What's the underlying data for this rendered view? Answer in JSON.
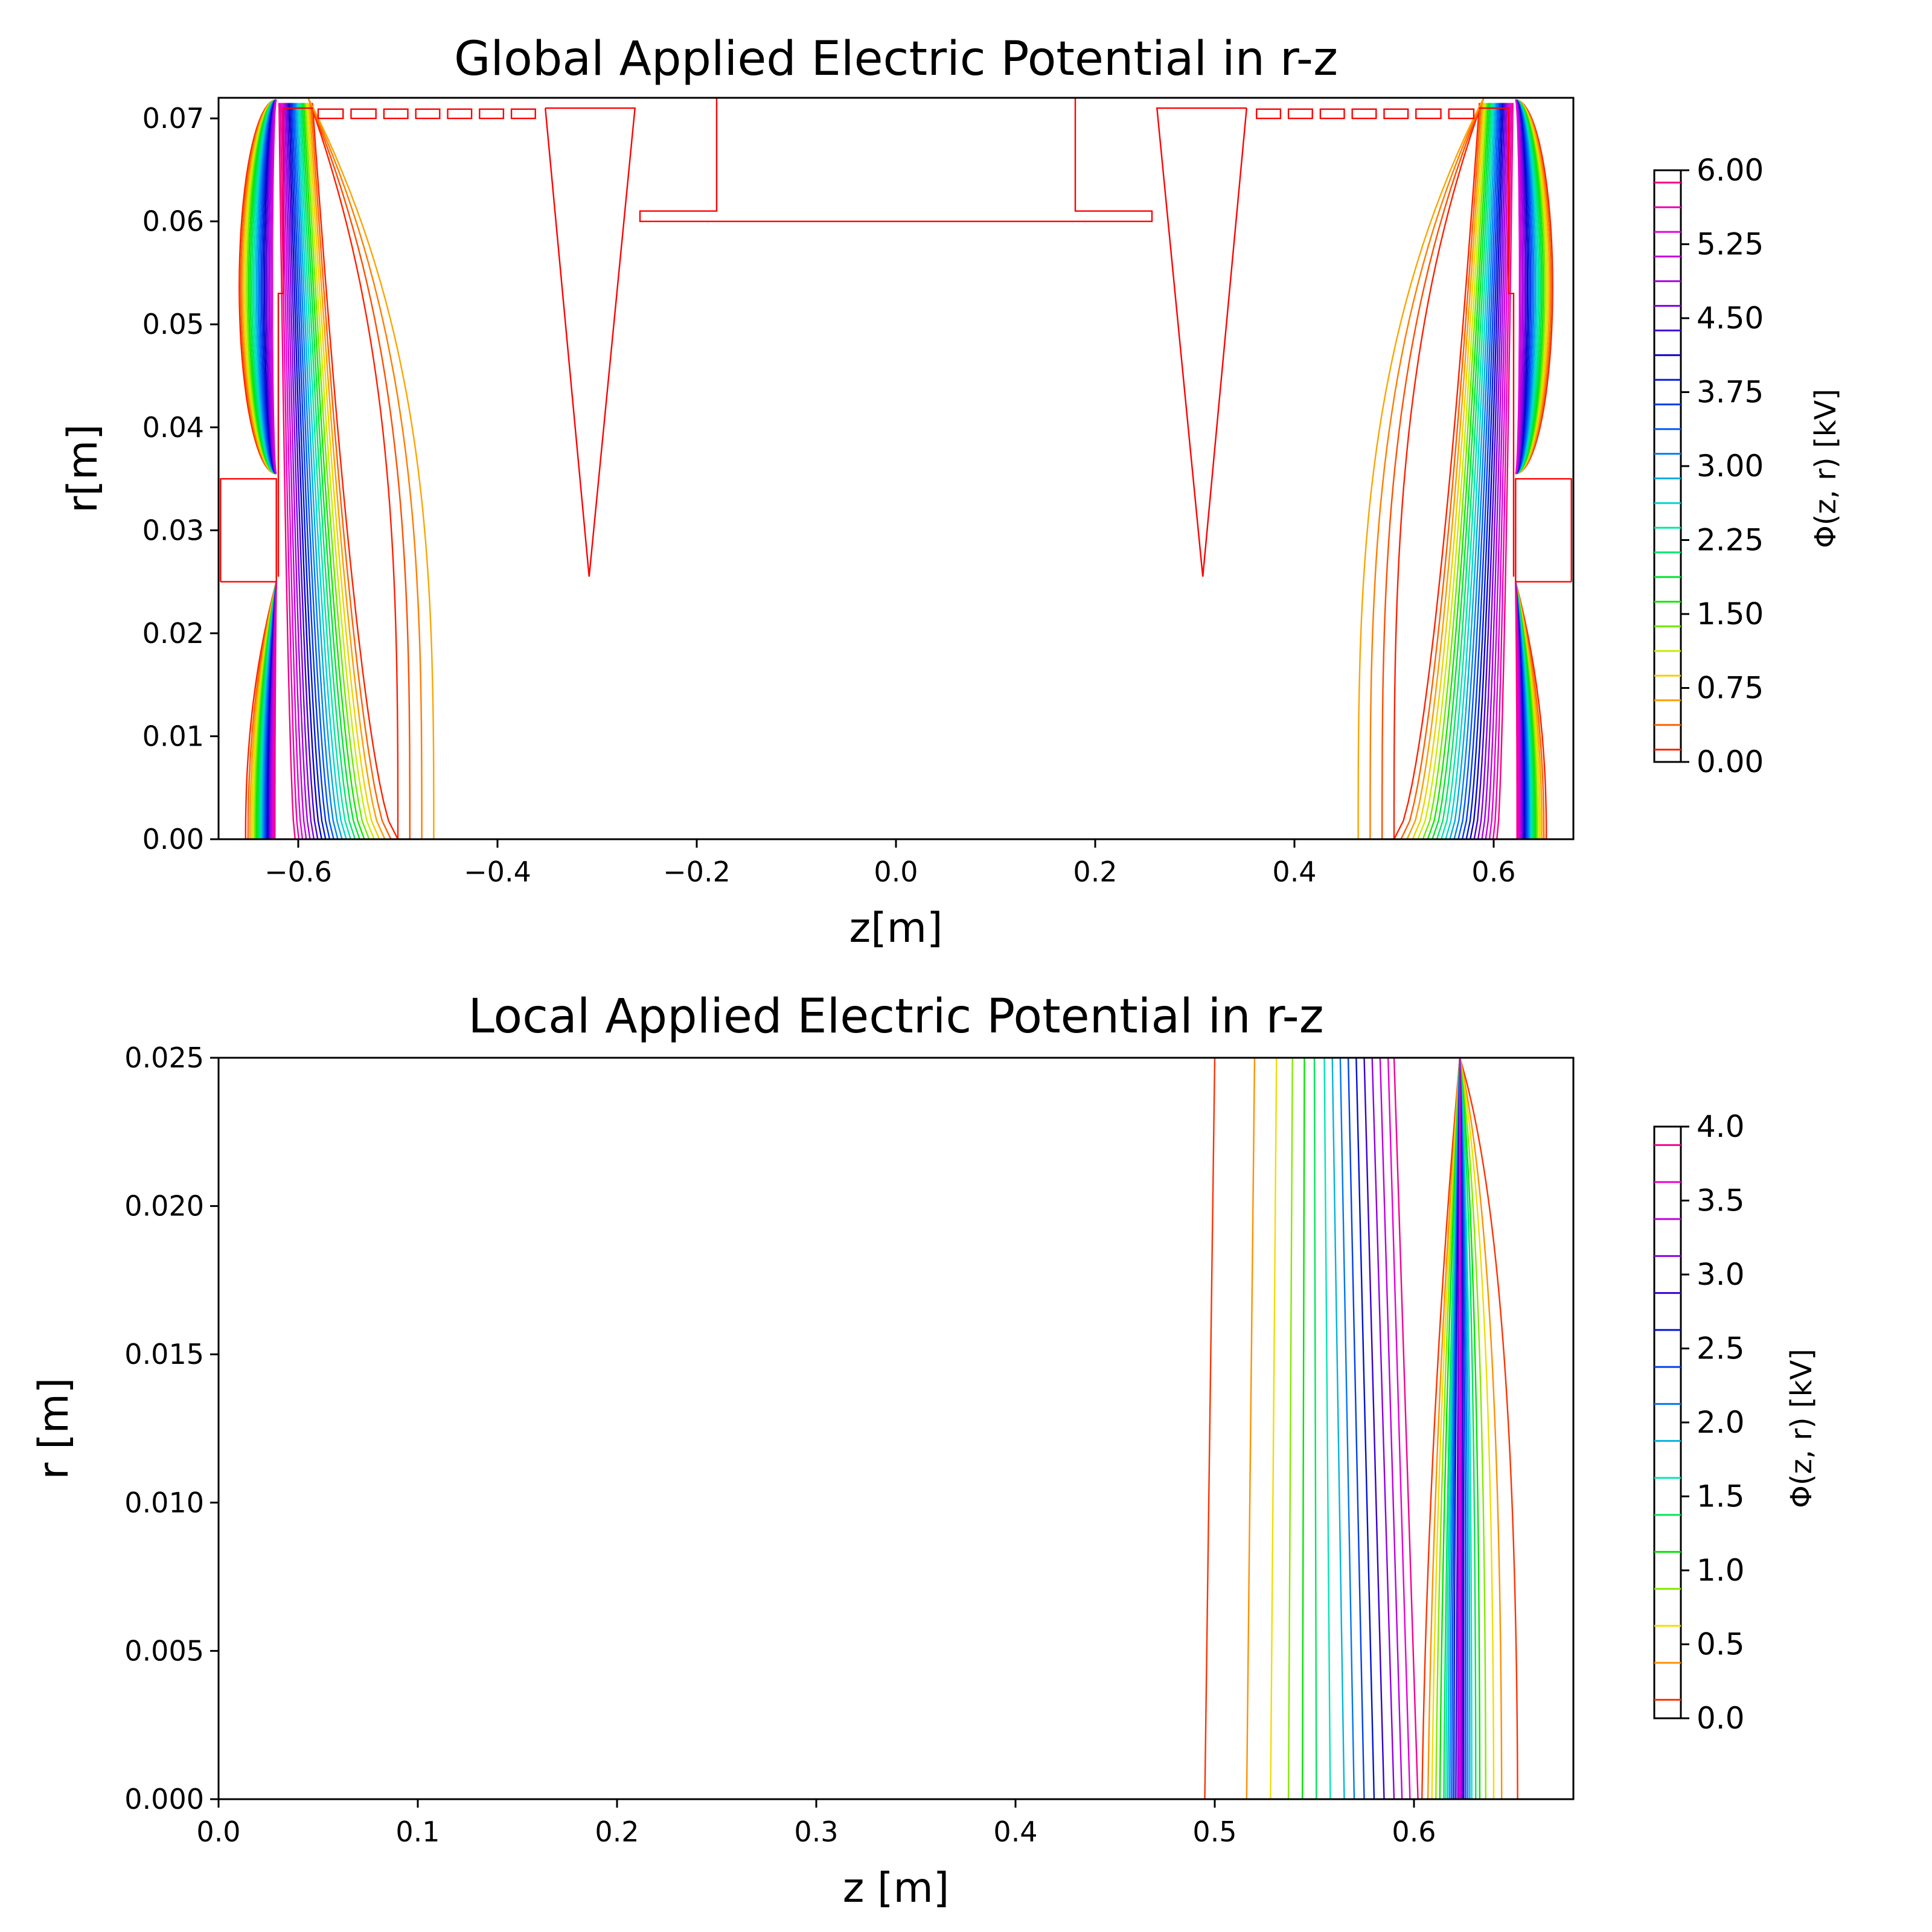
{
  "chart_data": [
    {
      "type": "contour",
      "title": "Global Applied Electric Potential in r-z",
      "xlabel": "z[m]",
      "ylabel": "r[m]",
      "xlim": [
        -0.68,
        0.68
      ],
      "ylim": [
        0.0,
        0.072
      ],
      "x_ticks": [
        "−0.6",
        "−0.4",
        "−0.2",
        "0.0",
        "0.2",
        "0.4",
        "0.6"
      ],
      "x_tick_values": [
        -0.6,
        -0.4,
        -0.2,
        0.0,
        0.2,
        0.4,
        0.6
      ],
      "y_ticks": [
        "0.00",
        "0.01",
        "0.02",
        "0.03",
        "0.04",
        "0.05",
        "0.06",
        "0.07"
      ],
      "y_tick_values": [
        0.0,
        0.01,
        0.02,
        0.03,
        0.04,
        0.05,
        0.06,
        0.07
      ],
      "colorbar": {
        "label": "Φ(z, r) [kV]",
        "range": [
          0.0,
          6.0
        ],
        "ticks": [
          "0.00",
          "0.75",
          "1.50",
          "2.25",
          "3.00",
          "3.75",
          "4.50",
          "5.25",
          "6.00"
        ],
        "tick_values": [
          0.0,
          0.75,
          1.5,
          2.25,
          3.0,
          3.75,
          4.5,
          5.25,
          6.0
        ],
        "n_levels": 24
      },
      "electrodes": {
        "color": "#ff0000",
        "outlines": [
          [
            [
              -0.678,
              0.025
            ],
            [
              -0.622,
              0.025
            ],
            [
              -0.622,
              0.035
            ],
            [
              -0.678,
              0.035
            ],
            [
              -0.678,
              0.025
            ]
          ],
          [
            [
              0.678,
              0.025
            ],
            [
              0.622,
              0.025
            ],
            [
              0.622,
              0.035
            ],
            [
              0.678,
              0.035
            ],
            [
              0.678,
              0.025
            ]
          ],
          [
            [
              -0.352,
              0.071
            ],
            [
              -0.262,
              0.071
            ],
            [
              -0.308,
              0.0255
            ],
            [
              -0.352,
              0.071
            ]
          ],
          [
            [
              0.352,
              0.071
            ],
            [
              0.262,
              0.071
            ],
            [
              0.308,
              0.0255
            ],
            [
              0.352,
              0.071
            ]
          ],
          [
            [
              -0.18,
              0.072
            ],
            [
              -0.18,
              0.061
            ],
            [
              -0.257,
              0.061
            ],
            [
              -0.257,
              0.06
            ],
            [
              0.257,
              0.06
            ],
            [
              0.257,
              0.061
            ],
            [
              0.18,
              0.061
            ],
            [
              0.18,
              0.072
            ]
          ],
          [
            [
              -0.62,
              0.0255
            ],
            [
              -0.62,
              0.048
            ],
            [
              -0.62,
              0.053
            ],
            [
              -0.615,
              0.053
            ],
            [
              -0.615,
              0.071
            ],
            [
              -0.585,
              0.071
            ]
          ],
          [
            [
              0.62,
              0.0255
            ],
            [
              0.62,
              0.048
            ],
            [
              0.62,
              0.053
            ],
            [
              0.615,
              0.053
            ],
            [
              0.615,
              0.071
            ],
            [
              0.585,
              0.071
            ]
          ]
        ],
        "ring_segments_z": [
          [
            -0.58,
            -0.555
          ],
          [
            -0.547,
            -0.522
          ],
          [
            -0.514,
            -0.49
          ],
          [
            -0.482,
            -0.458
          ],
          [
            -0.45,
            -0.426
          ],
          [
            -0.418,
            -0.394
          ],
          [
            -0.386,
            -0.362
          ],
          [
            0.362,
            0.386
          ],
          [
            0.394,
            0.418
          ],
          [
            0.426,
            0.45
          ],
          [
            0.458,
            0.482
          ],
          [
            0.49,
            0.514
          ],
          [
            0.522,
            0.547
          ],
          [
            0.555,
            0.58
          ]
        ],
        "ring_r": [
          0.07,
          0.0709
        ]
      }
    },
    {
      "type": "contour",
      "title": "Local Applied Electric Potential in r-z",
      "xlabel": "z [m]",
      "ylabel": "r [m]",
      "xlim": [
        0.0,
        0.68
      ],
      "ylim": [
        0.0,
        0.025
      ],
      "x_ticks": [
        "0.0",
        "0.1",
        "0.2",
        "0.3",
        "0.4",
        "0.5",
        "0.6"
      ],
      "x_tick_values": [
        0.0,
        0.1,
        0.2,
        0.3,
        0.4,
        0.5,
        0.6
      ],
      "y_ticks": [
        "0.000",
        "0.005",
        "0.010",
        "0.015",
        "0.020",
        "0.025"
      ],
      "y_tick_values": [
        0.0,
        0.005,
        0.01,
        0.015,
        0.02,
        0.025
      ],
      "colorbar": {
        "label": "Φ(z, r) [kV]",
        "range": [
          0.0,
          4.0
        ],
        "ticks": [
          "0.0",
          "0.5",
          "1.0",
          "1.5",
          "2.0",
          "2.5",
          "3.0",
          "3.5",
          "4.0"
        ],
        "tick_values": [
          0.0,
          0.5,
          1.0,
          1.5,
          2.0,
          2.5,
          3.0,
          3.5,
          4.0
        ],
        "n_levels": 16
      },
      "left_family_z": {
        "at_r0": [
          0.495,
          0.516,
          0.528,
          0.537,
          0.544,
          0.551,
          0.558,
          0.565,
          0.57,
          0.575,
          0.58,
          0.585,
          0.59,
          0.594,
          0.598,
          0.602
        ],
        "at_r_top": [
          0.5,
          0.52,
          0.531,
          0.539,
          0.545,
          0.55,
          0.555,
          0.559,
          0.563,
          0.567,
          0.571,
          0.575,
          0.579,
          0.583,
          0.587,
          0.59
        ]
      },
      "right_family_z": {
        "apex": [
          0.623,
          0.025
        ],
        "left_at_r0": [
          0.604,
          0.607,
          0.609,
          0.611,
          0.613,
          0.615,
          0.616,
          0.617,
          0.618,
          0.619,
          0.62,
          0.621,
          0.622,
          0.6225,
          0.623
        ],
        "right_at_r0": [
          0.652,
          0.644,
          0.64,
          0.636,
          0.633,
          0.631,
          0.629,
          0.628,
          0.627,
          0.626,
          0.625,
          0.6245,
          0.624,
          0.6235,
          0.623
        ]
      }
    }
  ]
}
